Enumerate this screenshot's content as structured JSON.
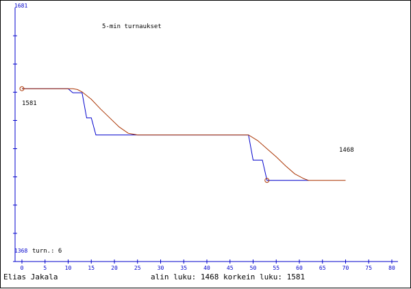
{
  "chart_data": {
    "type": "line",
    "title": "5-min turnaukset",
    "x_ticks": [
      0,
      5,
      10,
      15,
      20,
      25,
      30,
      35,
      40,
      45,
      50,
      55,
      60,
      65,
      70,
      75,
      80
    ],
    "xlim": [
      0,
      80
    ],
    "ylim": [
      1368,
      1681
    ],
    "y_max_label": "1681",
    "y_min_label": "1368",
    "turns_label": "turn.: 6",
    "start_value_label": "1581",
    "end_value_label": "1468",
    "series": [
      {
        "color": "#0000cc",
        "x": [
          0,
          10,
          11,
          12,
          13,
          14,
          15,
          16,
          24,
          25,
          49,
          50,
          51,
          52,
          53,
          55,
          61,
          62
        ],
        "y": [
          1581,
          1581,
          1576,
          1576,
          1576,
          1545,
          1545,
          1524,
          1524,
          1524,
          1524,
          1493,
          1493,
          1493,
          1468,
          1468,
          1468,
          1468
        ]
      },
      {
        "color": "#aa3300",
        "x": [
          0,
          10,
          11,
          12,
          13,
          15,
          17,
          19,
          21,
          23,
          24,
          25,
          49,
          51,
          53,
          55,
          57,
          59,
          61,
          62,
          70
        ],
        "y": [
          1581,
          1581,
          1581,
          1580,
          1577,
          1568,
          1556,
          1545,
          1534,
          1526,
          1525,
          1524,
          1524,
          1517,
          1507,
          1497,
          1486,
          1476,
          1470,
          1468,
          1468
        ]
      }
    ],
    "markers": [
      {
        "x": 0,
        "y": 1581,
        "color": "#aa3300"
      },
      {
        "x": 53,
        "y": 1468,
        "color": "#aa3300"
      }
    ]
  },
  "footer": {
    "player": "Elias Jakala",
    "stats": "alin luku: 1468  korkein luku: 1581"
  }
}
